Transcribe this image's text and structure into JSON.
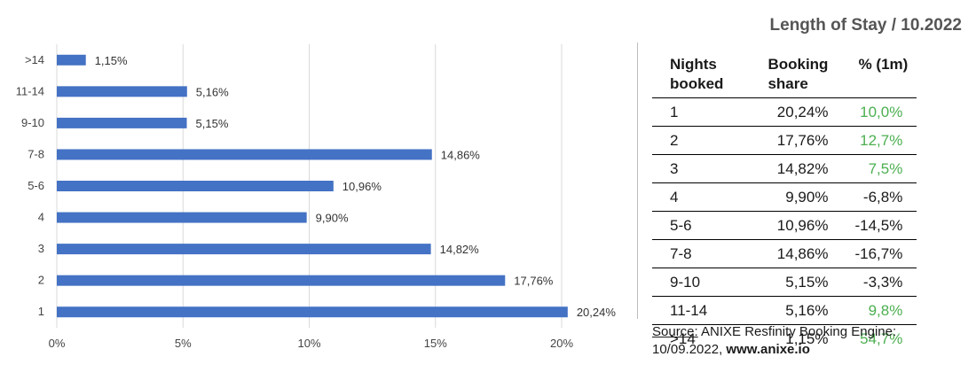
{
  "title": "Length of Stay / 10.2022",
  "chart_data": {
    "type": "bar",
    "orientation": "horizontal",
    "categories": [
      "1",
      "2",
      "3",
      "4",
      "5-6",
      "7-8",
      "9-10",
      "11-14",
      ">14"
    ],
    "values": [
      20.24,
      17.76,
      14.82,
      9.9,
      10.96,
      14.86,
      5.15,
      5.16,
      1.15
    ],
    "value_labels": [
      "20,24%",
      "17,76%",
      "14,82%",
      "9,90%",
      "10,96%",
      "14,86%",
      "5,15%",
      "5,16%",
      "1,15%"
    ],
    "xlim": [
      0,
      20
    ],
    "xticks": [
      "0%",
      "5%",
      "10%",
      "15%",
      "20%"
    ],
    "xtick_values": [
      0,
      5,
      10,
      15,
      20
    ],
    "bar_color": "#4472C4",
    "grid": true
  },
  "table": {
    "headers": [
      "Nights booked",
      "Booking share",
      "% (1m)"
    ],
    "header_lines": [
      [
        "Nights",
        "booked"
      ],
      [
        "Booking",
        "share"
      ],
      [
        "% (1m)"
      ]
    ],
    "rows": [
      {
        "nights": "1",
        "share": "20,24%",
        "change": "10,0%",
        "positive": true
      },
      {
        "nights": "2",
        "share": "17,76%",
        "change": "12,7%",
        "positive": true
      },
      {
        "nights": "3",
        "share": "14,82%",
        "change": "7,5%",
        "positive": true
      },
      {
        "nights": "4",
        "share": "9,90%",
        "change": "-6,8%",
        "positive": false
      },
      {
        "nights": "5-6",
        "share": "10,96%",
        "change": "-14,5%",
        "positive": false
      },
      {
        "nights": "7-8",
        "share": "14,86%",
        "change": "-16,7%",
        "positive": false
      },
      {
        "nights": "9-10",
        "share": "5,15%",
        "change": "-3,3%",
        "positive": false
      },
      {
        "nights": "11-14",
        "share": "5,16%",
        "change": "9,8%",
        "positive": true
      },
      {
        "nights": ">14",
        "share": "1,15%",
        "change": "54,7%",
        "positive": true
      }
    ],
    "positive_color": "#4caf50"
  },
  "source": {
    "label": "Source:",
    "text": " ANIXE Resfinity Booking Engine:",
    "line2_text": "10/09.2022, ",
    "url": "www.anixe.io"
  }
}
